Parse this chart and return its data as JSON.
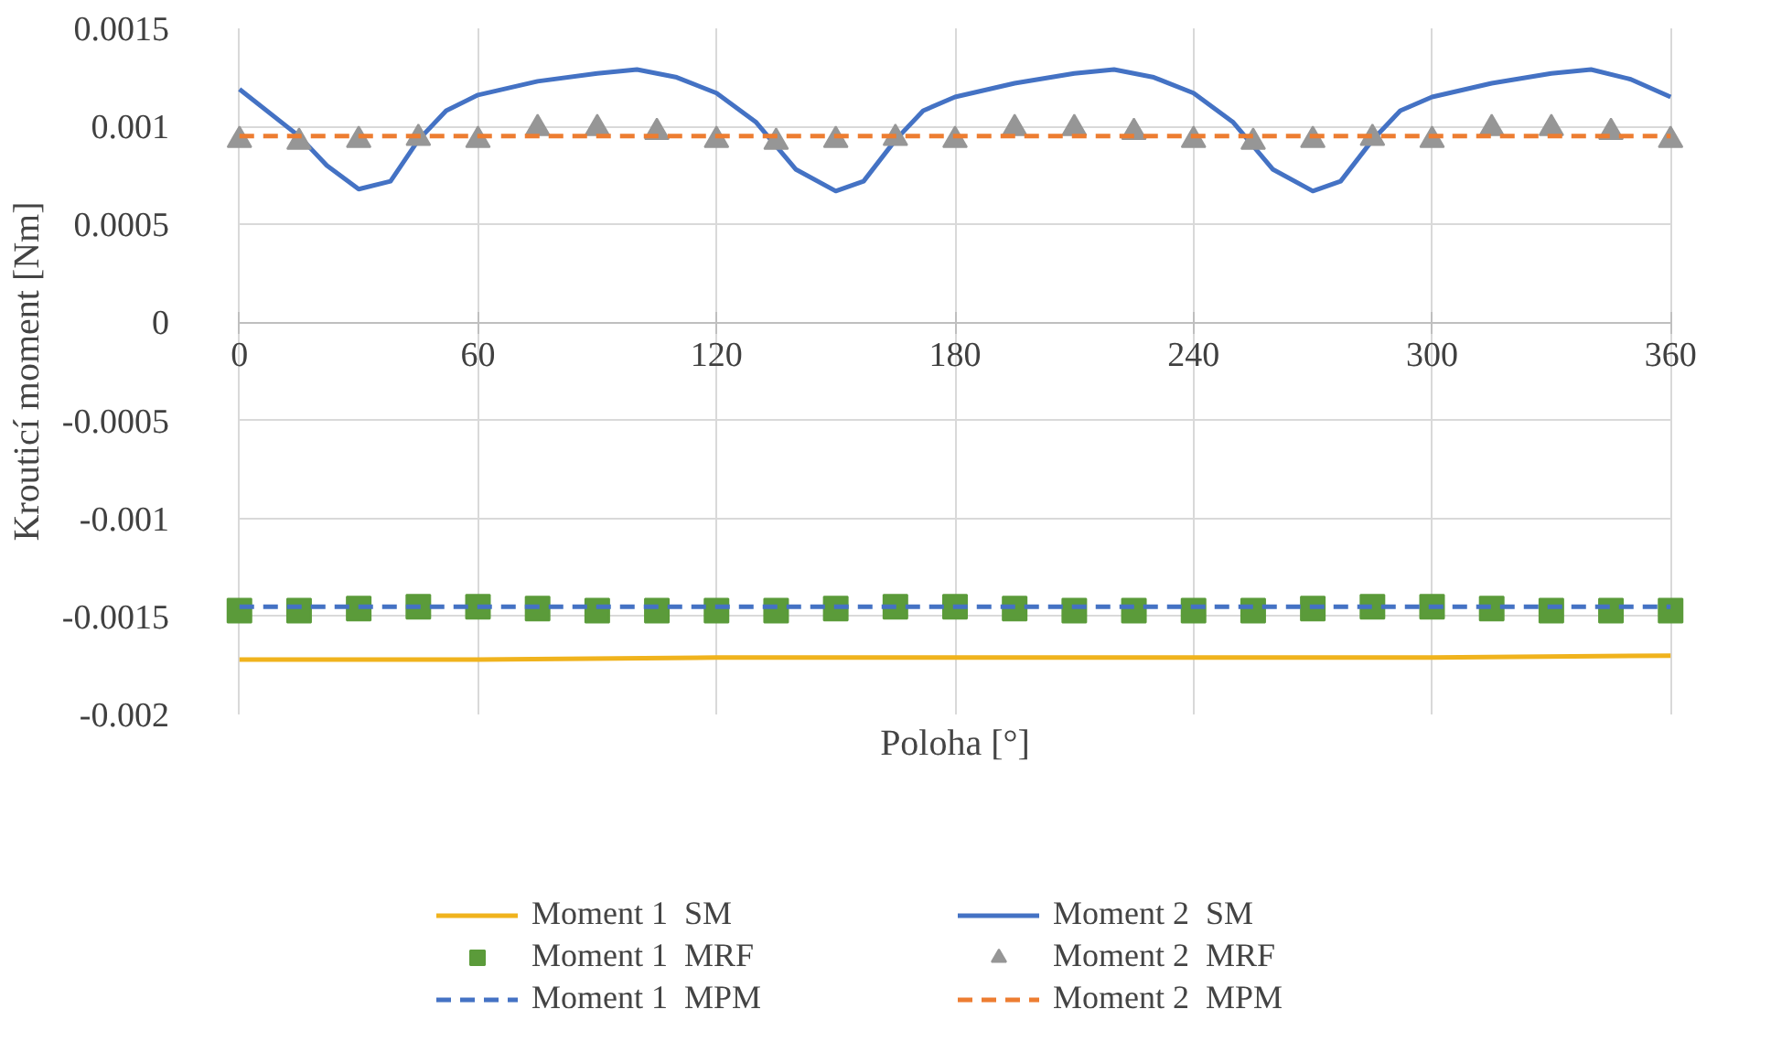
{
  "chart_data": {
    "type": "line",
    "xlabel": "Poloha [°]",
    "ylabel": "Krouticí moment [Nm]",
    "xlim": [
      0,
      360
    ],
    "xticks": [
      0,
      60,
      120,
      180,
      240,
      300,
      360
    ],
    "ylim": [
      -0.002,
      0.0015
    ],
    "yticks": [
      -0.002,
      -0.0015,
      -0.001,
      -0.0005,
      0,
      0.0005,
      0.001,
      0.0015
    ],
    "grid": true,
    "legend": "bottom",
    "series": [
      {
        "name": "Moment 1  SM",
        "color": "#f0b31d",
        "line_style": "solid",
        "marker": "none",
        "x": [
          0,
          60,
          120,
          180,
          240,
          300,
          360
        ],
        "values": [
          -0.00172,
          -0.00172,
          -0.00171,
          -0.00171,
          -0.00171,
          -0.00171,
          -0.0017
        ]
      },
      {
        "name": "Moment 2  SM",
        "color": "#4472c4",
        "line_style": "solid",
        "marker": "none",
        "x": [
          0,
          15,
          22,
          30,
          38,
          45,
          52,
          60,
          75,
          90,
          100,
          110,
          120,
          130,
          140,
          150,
          157,
          165,
          172,
          180,
          195,
          210,
          220,
          230,
          240,
          250,
          260,
          270,
          277,
          285,
          292,
          300,
          315,
          330,
          340,
          350,
          360
        ],
        "values": [
          0.00119,
          0.00095,
          0.0008,
          0.00068,
          0.00072,
          0.00093,
          0.00108,
          0.00116,
          0.00123,
          0.00127,
          0.00129,
          0.00125,
          0.00117,
          0.00102,
          0.00078,
          0.00067,
          0.00072,
          0.00093,
          0.00108,
          0.00115,
          0.00122,
          0.00127,
          0.00129,
          0.00125,
          0.00117,
          0.00102,
          0.00078,
          0.00067,
          0.00072,
          0.00093,
          0.00108,
          0.00115,
          0.00122,
          0.00127,
          0.00129,
          0.00124,
          0.00115
        ]
      },
      {
        "name": "Moment 1  MRF",
        "type": "scatter",
        "color": "#5b9b3a",
        "marker": "square",
        "x": [
          0,
          15,
          30,
          45,
          60,
          75,
          90,
          105,
          120,
          135,
          150,
          165,
          180,
          195,
          210,
          225,
          240,
          255,
          270,
          285,
          300,
          315,
          330,
          345,
          360
        ],
        "values": [
          -0.00147,
          -0.00147,
          -0.00146,
          -0.00145,
          -0.00145,
          -0.00146,
          -0.00147,
          -0.00147,
          -0.00147,
          -0.00147,
          -0.00146,
          -0.00145,
          -0.00145,
          -0.00146,
          -0.00147,
          -0.00147,
          -0.00147,
          -0.00147,
          -0.00146,
          -0.00145,
          -0.00145,
          -0.00146,
          -0.00147,
          -0.00147,
          -0.00147
        ]
      },
      {
        "name": "Moment 2  MRF",
        "type": "scatter",
        "color": "#969696",
        "marker": "triangle",
        "x": [
          0,
          15,
          30,
          45,
          60,
          75,
          90,
          105,
          120,
          135,
          150,
          165,
          180,
          195,
          210,
          225,
          240,
          255,
          270,
          285,
          300,
          315,
          330,
          345,
          360
        ],
        "values": [
          0.00093,
          0.00092,
          0.00093,
          0.00094,
          0.00093,
          0.00099,
          0.00099,
          0.00097,
          0.00093,
          0.00092,
          0.00093,
          0.00094,
          0.00093,
          0.00099,
          0.00099,
          0.00097,
          0.00093,
          0.00092,
          0.00093,
          0.00094,
          0.00093,
          0.00099,
          0.00099,
          0.00097,
          0.00093
        ]
      },
      {
        "name": "Moment 1  MPM",
        "color": "#4472c4",
        "line_style": "dashed",
        "marker": "none",
        "x": [
          0,
          360
        ],
        "values": [
          -0.00145,
          -0.00145
        ]
      },
      {
        "name": "Moment 2  MPM",
        "color": "#ed7d31",
        "line_style": "dashed",
        "marker": "none",
        "x": [
          0,
          360
        ],
        "values": [
          0.00095,
          0.00095
        ]
      }
    ]
  }
}
